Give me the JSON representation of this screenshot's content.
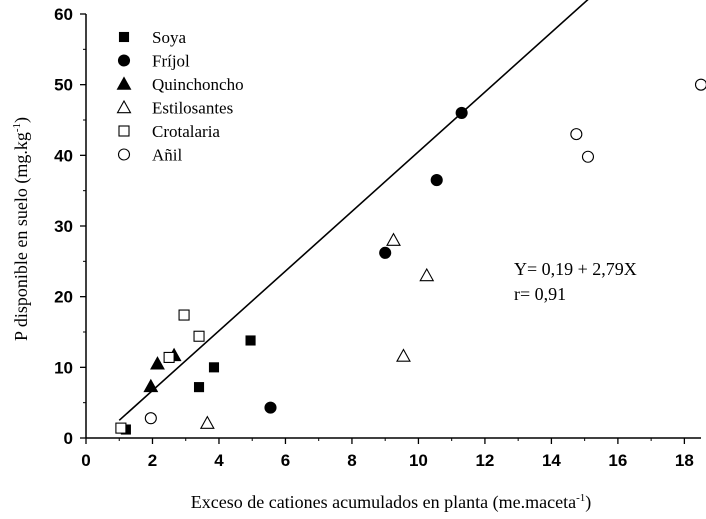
{
  "chart_data": {
    "type": "scatter",
    "xlabel": {
      "main": "Exceso de cationes acumulados en planta (me.maceta",
      "sup": "-1",
      "tail": ")"
    },
    "ylabel": {
      "main": "P disponible en suelo (mg.kg",
      "sup": "-1",
      "tail": ")"
    },
    "xlim": [
      0,
      18.5
    ],
    "ylim": [
      0,
      60
    ],
    "xticks": [
      "0",
      "2",
      "4",
      "6",
      "8",
      "10",
      "12",
      "14",
      "16",
      "18"
    ],
    "yticks": [
      "0",
      "10",
      "20",
      "30",
      "40",
      "50",
      "60"
    ],
    "grid": false,
    "legend_position": "top-left",
    "series": [
      {
        "name": "Soya",
        "marker": "square-filled",
        "points": [
          [
            1.2,
            1.2
          ],
          [
            3.4,
            7.2
          ],
          [
            3.85,
            10.0
          ],
          [
            4.95,
            13.8
          ]
        ]
      },
      {
        "name": "Fríjol",
        "marker": "circle-filled",
        "points": [
          [
            5.55,
            4.3
          ],
          [
            9.0,
            26.2
          ],
          [
            10.55,
            36.5
          ],
          [
            11.3,
            46.0
          ]
        ]
      },
      {
        "name": "Quinchoncho",
        "marker": "triangle-filled",
        "points": [
          [
            1.95,
            7.3
          ],
          [
            2.15,
            10.5
          ],
          [
            2.65,
            11.7
          ]
        ]
      },
      {
        "name": "Estilosantes",
        "marker": "triangle-open",
        "points": [
          [
            3.65,
            2.1
          ],
          [
            9.25,
            28.0
          ],
          [
            10.25,
            23.0
          ],
          [
            9.55,
            11.6
          ]
        ]
      },
      {
        "name": "Crotalaria",
        "marker": "square-open",
        "points": [
          [
            1.05,
            1.4
          ],
          [
            2.5,
            11.4
          ],
          [
            2.95,
            17.4
          ],
          [
            3.4,
            14.4
          ]
        ]
      },
      {
        "name": "Añil",
        "marker": "circle-open",
        "points": [
          [
            1.95,
            2.8
          ],
          [
            14.75,
            43.0
          ],
          [
            15.1,
            39.8
          ],
          [
            18.5,
            50.0
          ]
        ]
      }
    ],
    "fit_line": {
      "x_range": [
        1.0,
        18.5
      ]
    },
    "annotation": {
      "line1": "Y= 0,19 + 2,79X",
      "line2": "r= 0,91"
    }
  }
}
